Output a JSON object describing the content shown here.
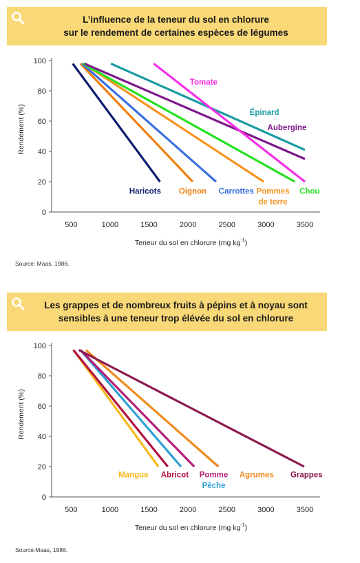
{
  "chart_data": [
    {
      "type": "line",
      "title_lines": [
        "L’influence de la teneur du sol en chlorure",
        "sur le rendement de certaines espèces de légumes"
      ],
      "xlabel": "Teneur du sol en chlorure (mg kg",
      "xlabel_sup": "-1",
      "xlabel_end": ")",
      "ylabel": "Rendement (%)",
      "xlim": [
        250,
        3650
      ],
      "ylim": [
        0,
        100
      ],
      "x_ticks": [
        500,
        1000,
        1500,
        2000,
        2500,
        3000,
        3500
      ],
      "y_ticks": [
        0,
        20,
        40,
        60,
        80,
        100
      ],
      "series": [
        {
          "name": "Haricots",
          "color": "#0d1b6e",
          "x": [
            520,
            1640
          ],
          "y": [
            98,
            20
          ],
          "labels": [
            {
              "text": "Haricots",
              "x": 1450,
              "y": 12
            }
          ]
        },
        {
          "name": "Oignon",
          "color": "#f07f10",
          "x": [
            620,
            2060
          ],
          "y": [
            98,
            20
          ],
          "labels": [
            {
              "text": "Oignon",
              "x": 2060,
              "y": 12
            }
          ]
        },
        {
          "name": "Carrottes",
          "color": "#3a6fe0",
          "x": [
            640,
            2360
          ],
          "y": [
            98,
            20
          ],
          "labels": [
            {
              "text": "Carrottes",
              "x": 2620,
              "y": 12
            }
          ]
        },
        {
          "name": "Pommes de terre",
          "color": "#f5941e",
          "x": [
            660,
            2970
          ],
          "y": [
            98,
            20
          ],
          "labels": [
            {
              "text": "Pommes",
              "x": 3090,
              "y": 12
            },
            {
              "text": "de terre",
              "x": 3090,
              "y": 5
            }
          ]
        },
        {
          "name": "Chou",
          "color": "#27e023",
          "x": [
            650,
            3370
          ],
          "y": [
            98,
            20
          ],
          "labels": [
            {
              "text": "Chou",
              "x": 3560,
              "y": 12
            }
          ]
        },
        {
          "name": "Aubergine",
          "color": "#7d1a8a",
          "x": [
            670,
            3500
          ],
          "y": [
            98,
            35
          ],
          "labels": [
            {
              "text": "Aubergine",
              "x": 3270,
              "y": 54
            }
          ]
        },
        {
          "name": "Épinard",
          "color": "#1a9ba4",
          "x": [
            1010,
            3500
          ],
          "y": [
            98,
            41
          ],
          "labels": [
            {
              "text": "Épinard",
              "x": 2980,
              "y": 64
            }
          ]
        },
        {
          "name": "Tomate",
          "color": "#f531e7",
          "x": [
            1560,
            3500
          ],
          "y": [
            98,
            20
          ],
          "labels": [
            {
              "text": "Tomate",
              "x": 2200,
              "y": 84
            }
          ]
        }
      ]
    },
    {
      "type": "line",
      "title_lines": [
        "Les grappes et de nombreux fruits à pépins et à noyau sont",
        "sensibles à une teneur trop élévée du sol en chlorure"
      ],
      "xlabel": "Teneur du sol en chlorure (mg kg",
      "xlabel_sup": "-1",
      "xlabel_end": ")",
      "ylabel": "Rendement (%)",
      "xlim": [
        250,
        3650
      ],
      "ylim": [
        0,
        100
      ],
      "x_ticks": [
        500,
        1000,
        1500,
        2000,
        2500,
        3000,
        3500
      ],
      "y_ticks": [
        0,
        20,
        40,
        60,
        80,
        100
      ],
      "series": [
        {
          "name": "Mangue",
          "color": "#f7b81d",
          "x": [
            530,
            1620
          ],
          "y": [
            97,
            20
          ],
          "labels": [
            {
              "text": "Mangue",
              "x": 1300,
              "y": 13
            }
          ]
        },
        {
          "name": "Abricot",
          "color": "#b3123f",
          "x": [
            530,
            1740
          ],
          "y": [
            97,
            20
          ],
          "labels": [
            {
              "text": "Abricot",
              "x": 1830,
              "y": 13
            }
          ]
        },
        {
          "name": "Pêche",
          "color": "#2ea0d6",
          "x": [
            620,
            1910
          ],
          "y": [
            97,
            20
          ],
          "labels": [
            {
              "text": "Pêche",
              "x": 2330,
              "y": 6
            }
          ]
        },
        {
          "name": "Pomme",
          "color": "#b31e78",
          "x": [
            620,
            2080
          ],
          "y": [
            97,
            20
          ],
          "labels": [
            {
              "text": "Pomme",
              "x": 2330,
              "y": 13
            }
          ]
        },
        {
          "name": "Agrumes",
          "color": "#f08a1e",
          "x": [
            690,
            2390
          ],
          "y": [
            97,
            20
          ],
          "labels": [
            {
              "text": "Agrumes",
              "x": 2880,
              "y": 13
            }
          ]
        },
        {
          "name": "Grappes",
          "color": "#8c1a4f",
          "x": [
            600,
            3490
          ],
          "y": [
            97,
            20
          ],
          "labels": [
            {
              "text": "Grappes",
              "x": 3520,
              "y": 13
            }
          ]
        }
      ]
    }
  ],
  "sources": [
    "Source: Maas, 1986.",
    "Source:Maas, 1986."
  ],
  "banner_color": "#f9d877",
  "icon": "search-icon"
}
